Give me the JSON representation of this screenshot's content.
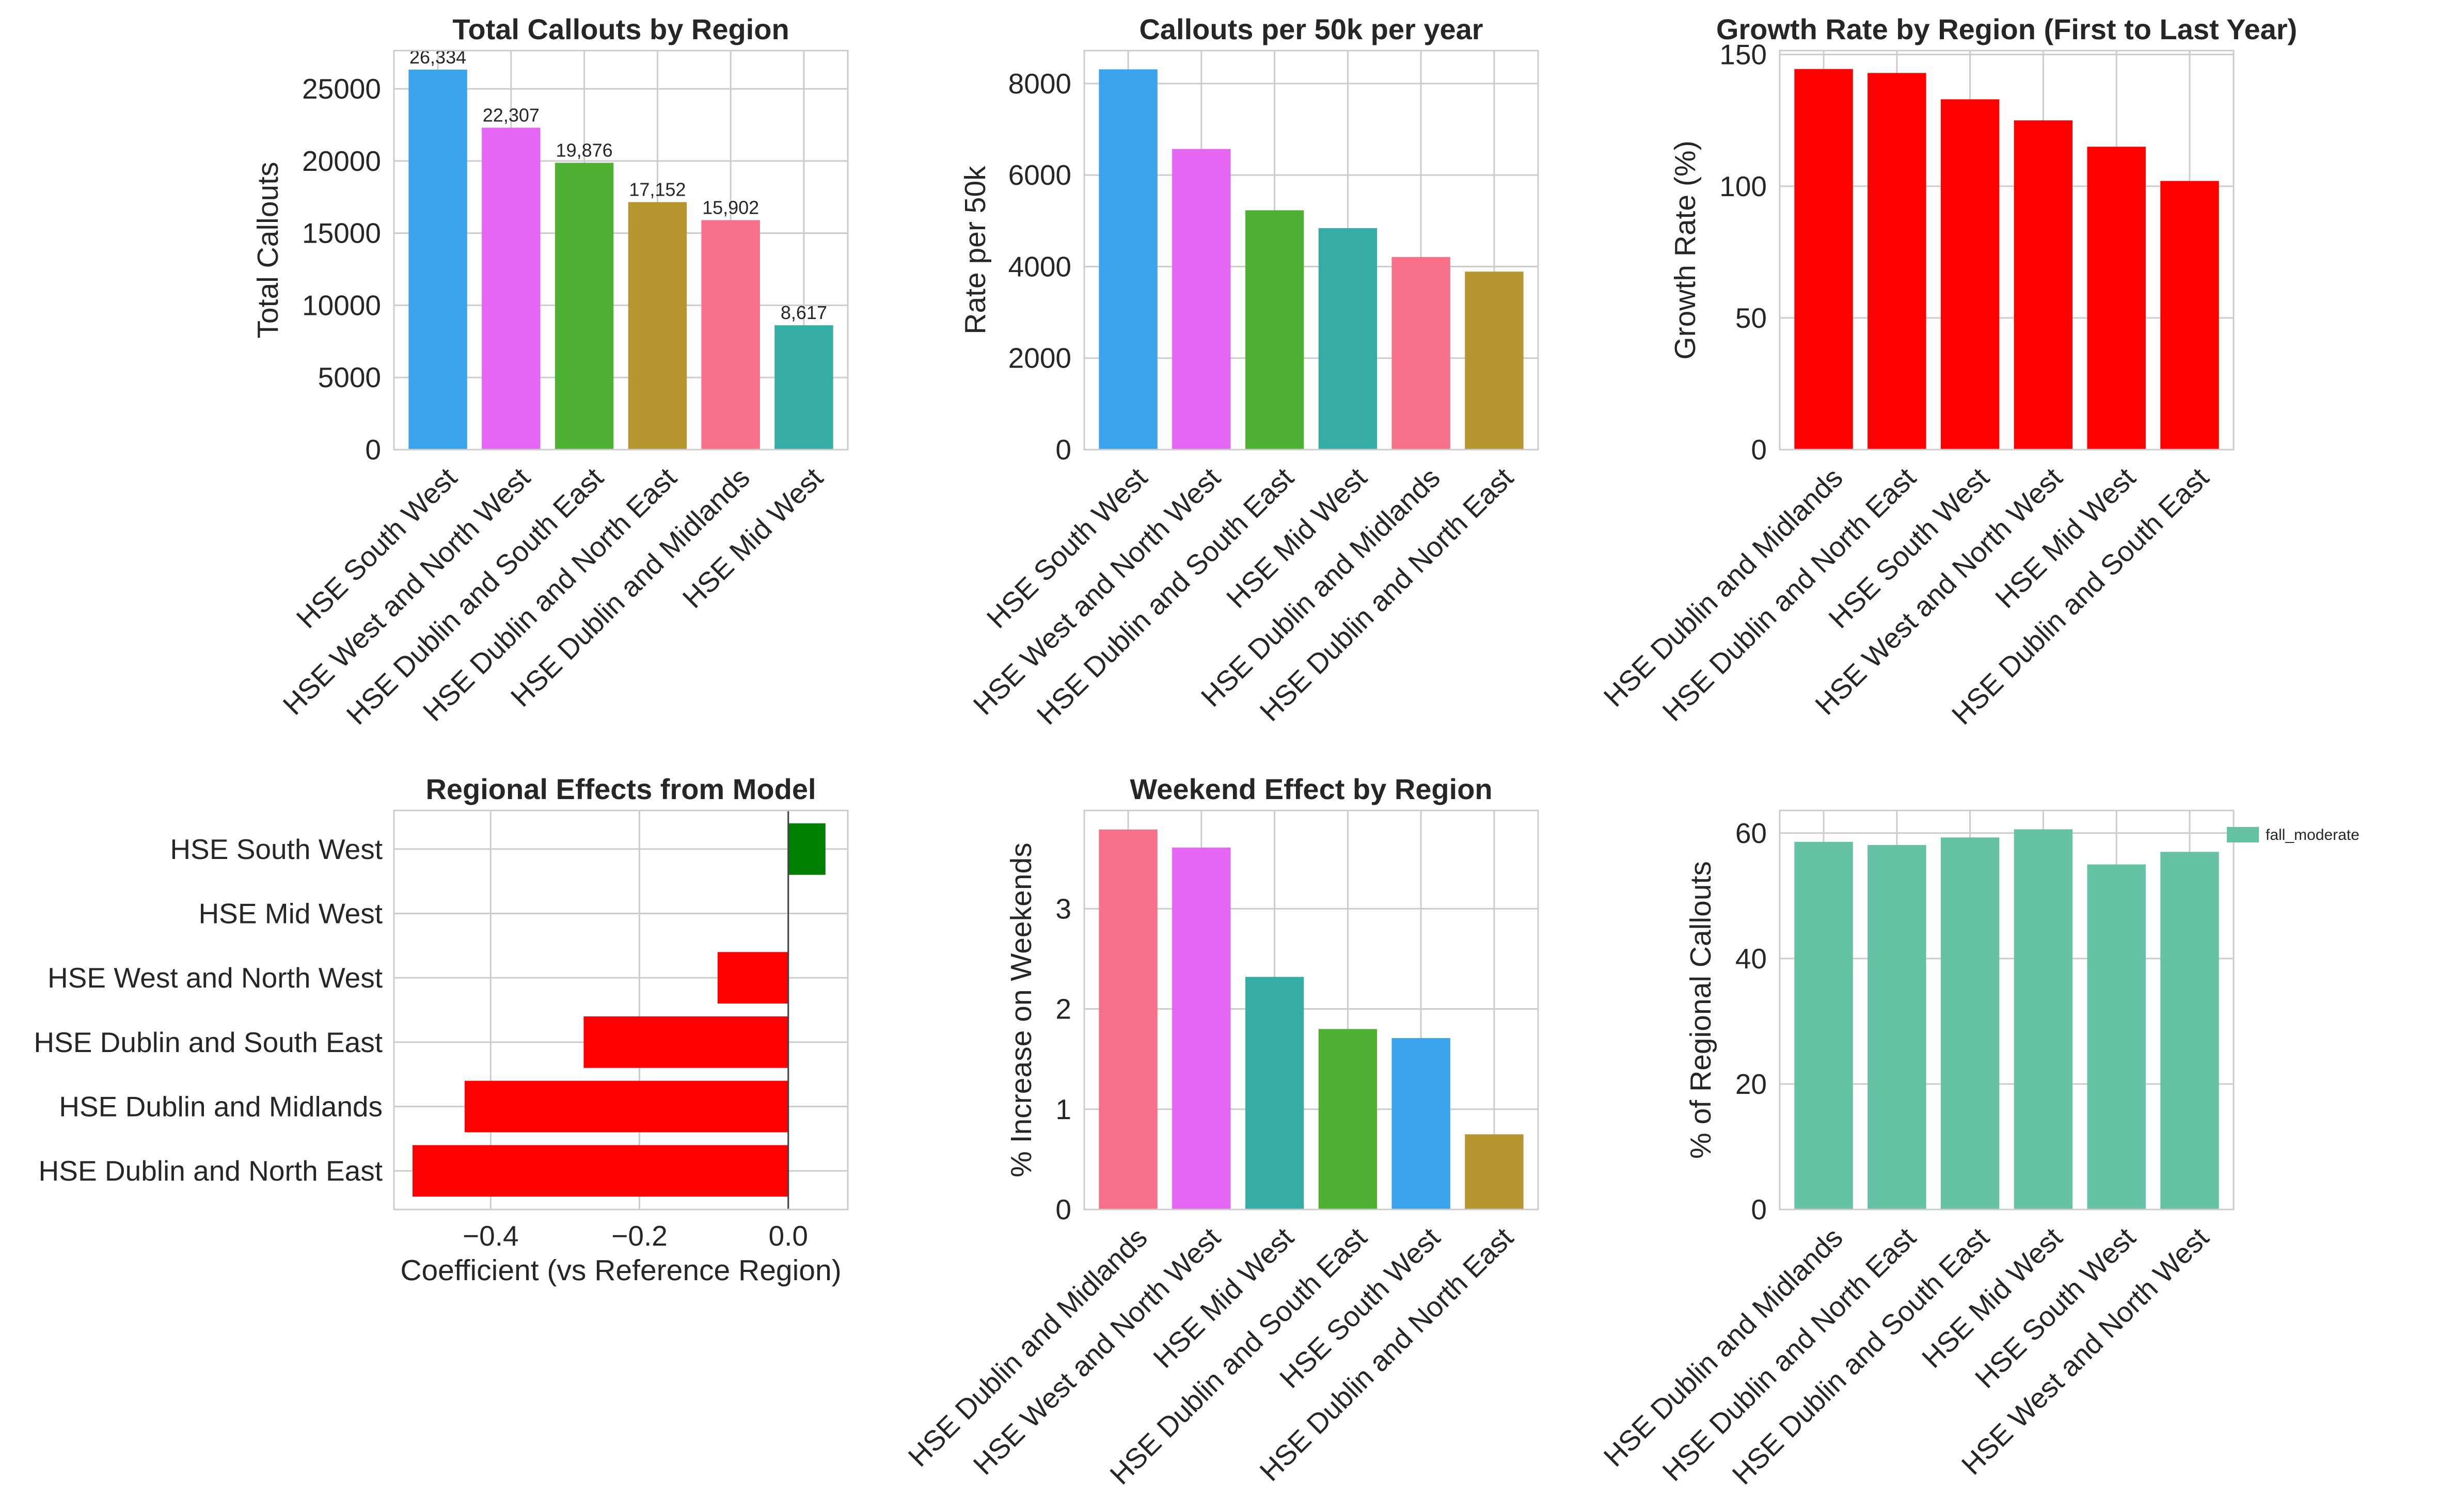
{
  "charts": [
    {
      "type": "bar",
      "orientation": "vertical",
      "title": "Total Callouts by Region",
      "xlabel": "",
      "ylabel": "Total Callouts",
      "categories": [
        "HSE South West",
        "HSE West and North West",
        "HSE Dublin and South East",
        "HSE Dublin and North East",
        "HSE Dublin and Midlands",
        "HSE Mid West"
      ],
      "values": [
        26334,
        22307,
        19876,
        17152,
        15902,
        8617
      ],
      "data_labels": [
        "26,334",
        "22,307",
        "19,876",
        "17,152",
        "15,902",
        "8,617"
      ],
      "colors": [
        "#3ba3ec",
        "#e466f3",
        "#4fb133",
        "#b8962f",
        "#f7708a",
        "#36ada4"
      ],
      "ylim": [
        0,
        27650
      ],
      "yticks": [
        0,
        5000,
        10000,
        15000,
        20000,
        25000
      ],
      "ytick_labels": [
        "0",
        "5000",
        "10000",
        "15000",
        "20000",
        "25000"
      ],
      "grid": true
    },
    {
      "type": "bar",
      "orientation": "vertical",
      "title": "Callouts per 50k per year",
      "xlabel": "",
      "ylabel": "Rate per 50k",
      "categories": [
        "HSE South West",
        "HSE West and North West",
        "HSE Dublin and South East",
        "HSE Mid West",
        "HSE Dublin and Midlands",
        "HSE Dublin and North East"
      ],
      "values": [
        8310,
        6570,
        5230,
        4840,
        4210,
        3890
      ],
      "colors": [
        "#3ba3ec",
        "#e466f3",
        "#4fb133",
        "#36ada4",
        "#f7708a",
        "#b8962f"
      ],
      "ylim": [
        0,
        8720
      ],
      "yticks": [
        0,
        2000,
        4000,
        6000,
        8000
      ],
      "ytick_labels": [
        "0",
        "2000",
        "4000",
        "6000",
        "8000"
      ],
      "grid": true
    },
    {
      "type": "bar",
      "orientation": "vertical",
      "title": "Growth Rate by Region (First to Last Year)",
      "xlabel": "",
      "ylabel": "Growth Rate (%)",
      "categories": [
        "HSE Dublin and Midlands",
        "HSE Dublin and North East",
        "HSE South West",
        "HSE West and North West",
        "HSE Mid West",
        "HSE Dublin and South East"
      ],
      "values": [
        144.5,
        143,
        133,
        125,
        115,
        102
      ],
      "colors": [
        "#ff0000",
        "#ff0000",
        "#ff0000",
        "#ff0000",
        "#ff0000",
        "#ff0000"
      ],
      "ylim": [
        0,
        151.5
      ],
      "yticks": [
        0,
        50,
        100,
        150
      ],
      "ytick_labels": [
        "0",
        "50",
        "100",
        "150"
      ],
      "grid": true
    },
    {
      "type": "bar",
      "orientation": "horizontal",
      "title": "Regional Effects from Model",
      "xlabel": "Coefficient (vs Reference Region)",
      "ylabel": "",
      "categories": [
        "HSE South West",
        "HSE Mid West",
        "HSE West and North West",
        "HSE Dublin and South East",
        "HSE Dublin and Midlands",
        "HSE Dublin and North East"
      ],
      "values": [
        0.05,
        0,
        -0.095,
        -0.275,
        -0.435,
        -0.505
      ],
      "colors": [
        "#008000",
        "#008000",
        "#ff0000",
        "#ff0000",
        "#ff0000",
        "#ff0000"
      ],
      "xlim": [
        -0.53,
        0.08
      ],
      "xticks": [
        -0.4,
        -0.2,
        0
      ],
      "xtick_labels": [
        "−0.4",
        "−0.2",
        "0.0"
      ],
      "grid": true
    },
    {
      "type": "bar",
      "orientation": "vertical",
      "title": "Weekend Effect by Region",
      "xlabel": "",
      "ylabel": "% Increase on Weekends",
      "categories": [
        "HSE Dublin and Midlands",
        "HSE West and North West",
        "HSE Mid West",
        "HSE Dublin and South East",
        "HSE South West",
        "HSE Dublin and North East"
      ],
      "values": [
        3.79,
        3.61,
        2.32,
        1.8,
        1.71,
        0.75
      ],
      "colors": [
        "#f7708a",
        "#e466f3",
        "#36ada4",
        "#4fb133",
        "#3ba3ec",
        "#b8962f"
      ],
      "ylim": [
        0,
        3.98
      ],
      "yticks": [
        0,
        1,
        2,
        3
      ],
      "ytick_labels": [
        "0",
        "1",
        "2",
        "3"
      ],
      "grid": true
    },
    {
      "type": "bar",
      "orientation": "vertical",
      "title": "",
      "xlabel": "",
      "ylabel": "% of Regional Callouts",
      "categories": [
        "HSE Dublin and Midlands",
        "HSE Dublin and North East",
        "HSE Dublin and South East",
        "HSE Mid West",
        "HSE South West",
        "HSE West and North West"
      ],
      "series": [
        {
          "name": "fall_moderate",
          "values": [
            58.6,
            58.1,
            59.3,
            60.6,
            55.0,
            57.0
          ]
        }
      ],
      "colors": [
        "#66c2a5",
        "#66c2a5",
        "#66c2a5",
        "#66c2a5",
        "#66c2a5",
        "#66c2a5"
      ],
      "ylim": [
        0,
        63.6
      ],
      "yticks": [
        0,
        20,
        40,
        60
      ],
      "ytick_labels": [
        "0",
        "20",
        "40",
        "60"
      ],
      "legend": {
        "position": "outside-upper-right",
        "color": "#66c2a5"
      },
      "grid": true
    }
  ]
}
